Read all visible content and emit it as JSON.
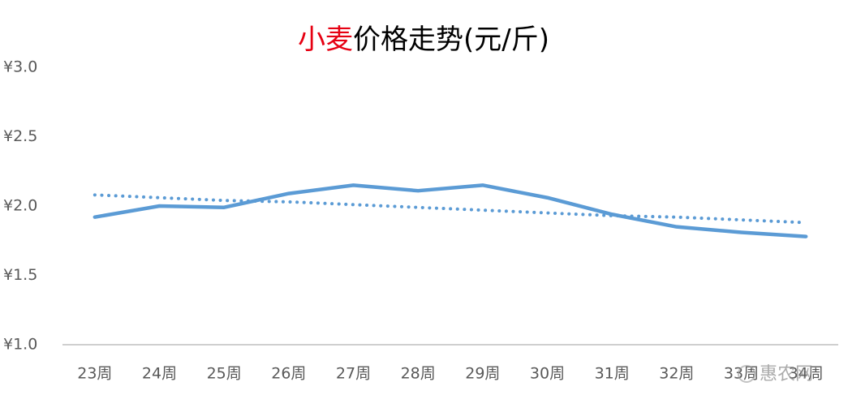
{
  "chart_data": {
    "type": "line",
    "title_parts": [
      {
        "text": "小麦",
        "color": "#e60012"
      },
      {
        "text": "价格走势(元/斤)",
        "color": "#000000"
      }
    ],
    "categories": [
      "23周",
      "24周",
      "25周",
      "26周",
      "27周",
      "28周",
      "29周",
      "30周",
      "31周",
      "32周",
      "33周",
      "34周"
    ],
    "series": [
      {
        "color": "#5b9bd5",
        "style": "solid",
        "values": [
          1.92,
          2.0,
          1.99,
          2.09,
          2.15,
          2.11,
          2.15,
          2.06,
          1.94,
          1.85,
          1.81,
          1.78
        ]
      },
      {
        "color": "#5b9bd5",
        "style": "dotted",
        "values": [
          2.08,
          2.06,
          2.04,
          2.03,
          2.01,
          1.99,
          1.97,
          1.95,
          1.93,
          1.92,
          1.9,
          1.88
        ]
      }
    ],
    "ylim": [
      1,
      3
    ],
    "yticks": [
      {
        "value": 1,
        "label": "¥1.0"
      },
      {
        "value": 1.5,
        "label": "¥1.5"
      },
      {
        "value": 2,
        "label": "¥2.0"
      },
      {
        "value": 2.5,
        "label": "¥2.5"
      },
      {
        "value": 3,
        "label": "¥3.0"
      }
    ],
    "grid": false,
    "watermark": "惠农网"
  }
}
